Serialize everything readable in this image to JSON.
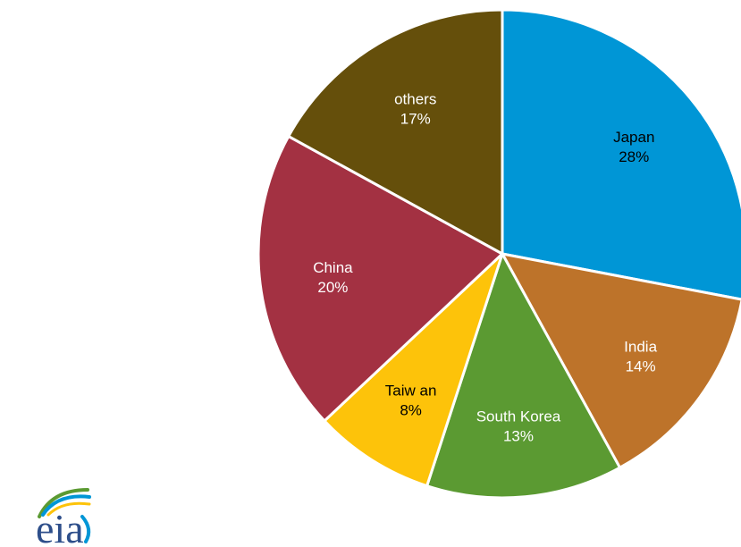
{
  "chart_data": {
    "type": "pie",
    "title": "",
    "start_angle_deg": 0,
    "direction": "clockwise",
    "slices": [
      {
        "label": "Japan",
        "value": 28,
        "value_label": "28%",
        "color": "#0096d6",
        "text_color": "#000000"
      },
      {
        "label": "India",
        "value": 14,
        "value_label": "14%",
        "color": "#bd732a",
        "text_color": "#ffffff"
      },
      {
        "label": "South Korea",
        "value": 13,
        "value_label": "13%",
        "color": "#5b9a32",
        "text_color": "#ffffff"
      },
      {
        "label": "Taiw an",
        "value": 8,
        "value_label": "8%",
        "color": "#fdc30a",
        "text_color": "#000000"
      },
      {
        "label": "China",
        "value": 20,
        "value_label": "20%",
        "color": "#a33142",
        "text_color": "#ffffff"
      },
      {
        "label": "others",
        "value": 17,
        "value_label": "17%",
        "color": "#654f0b",
        "text_color": "#ffffff"
      }
    ]
  },
  "logo": {
    "text": "eia",
    "text_color": "#2d4e8a",
    "swoosh_colors": [
      "#5b9a32",
      "#0096d6",
      "#fdc30a"
    ]
  }
}
